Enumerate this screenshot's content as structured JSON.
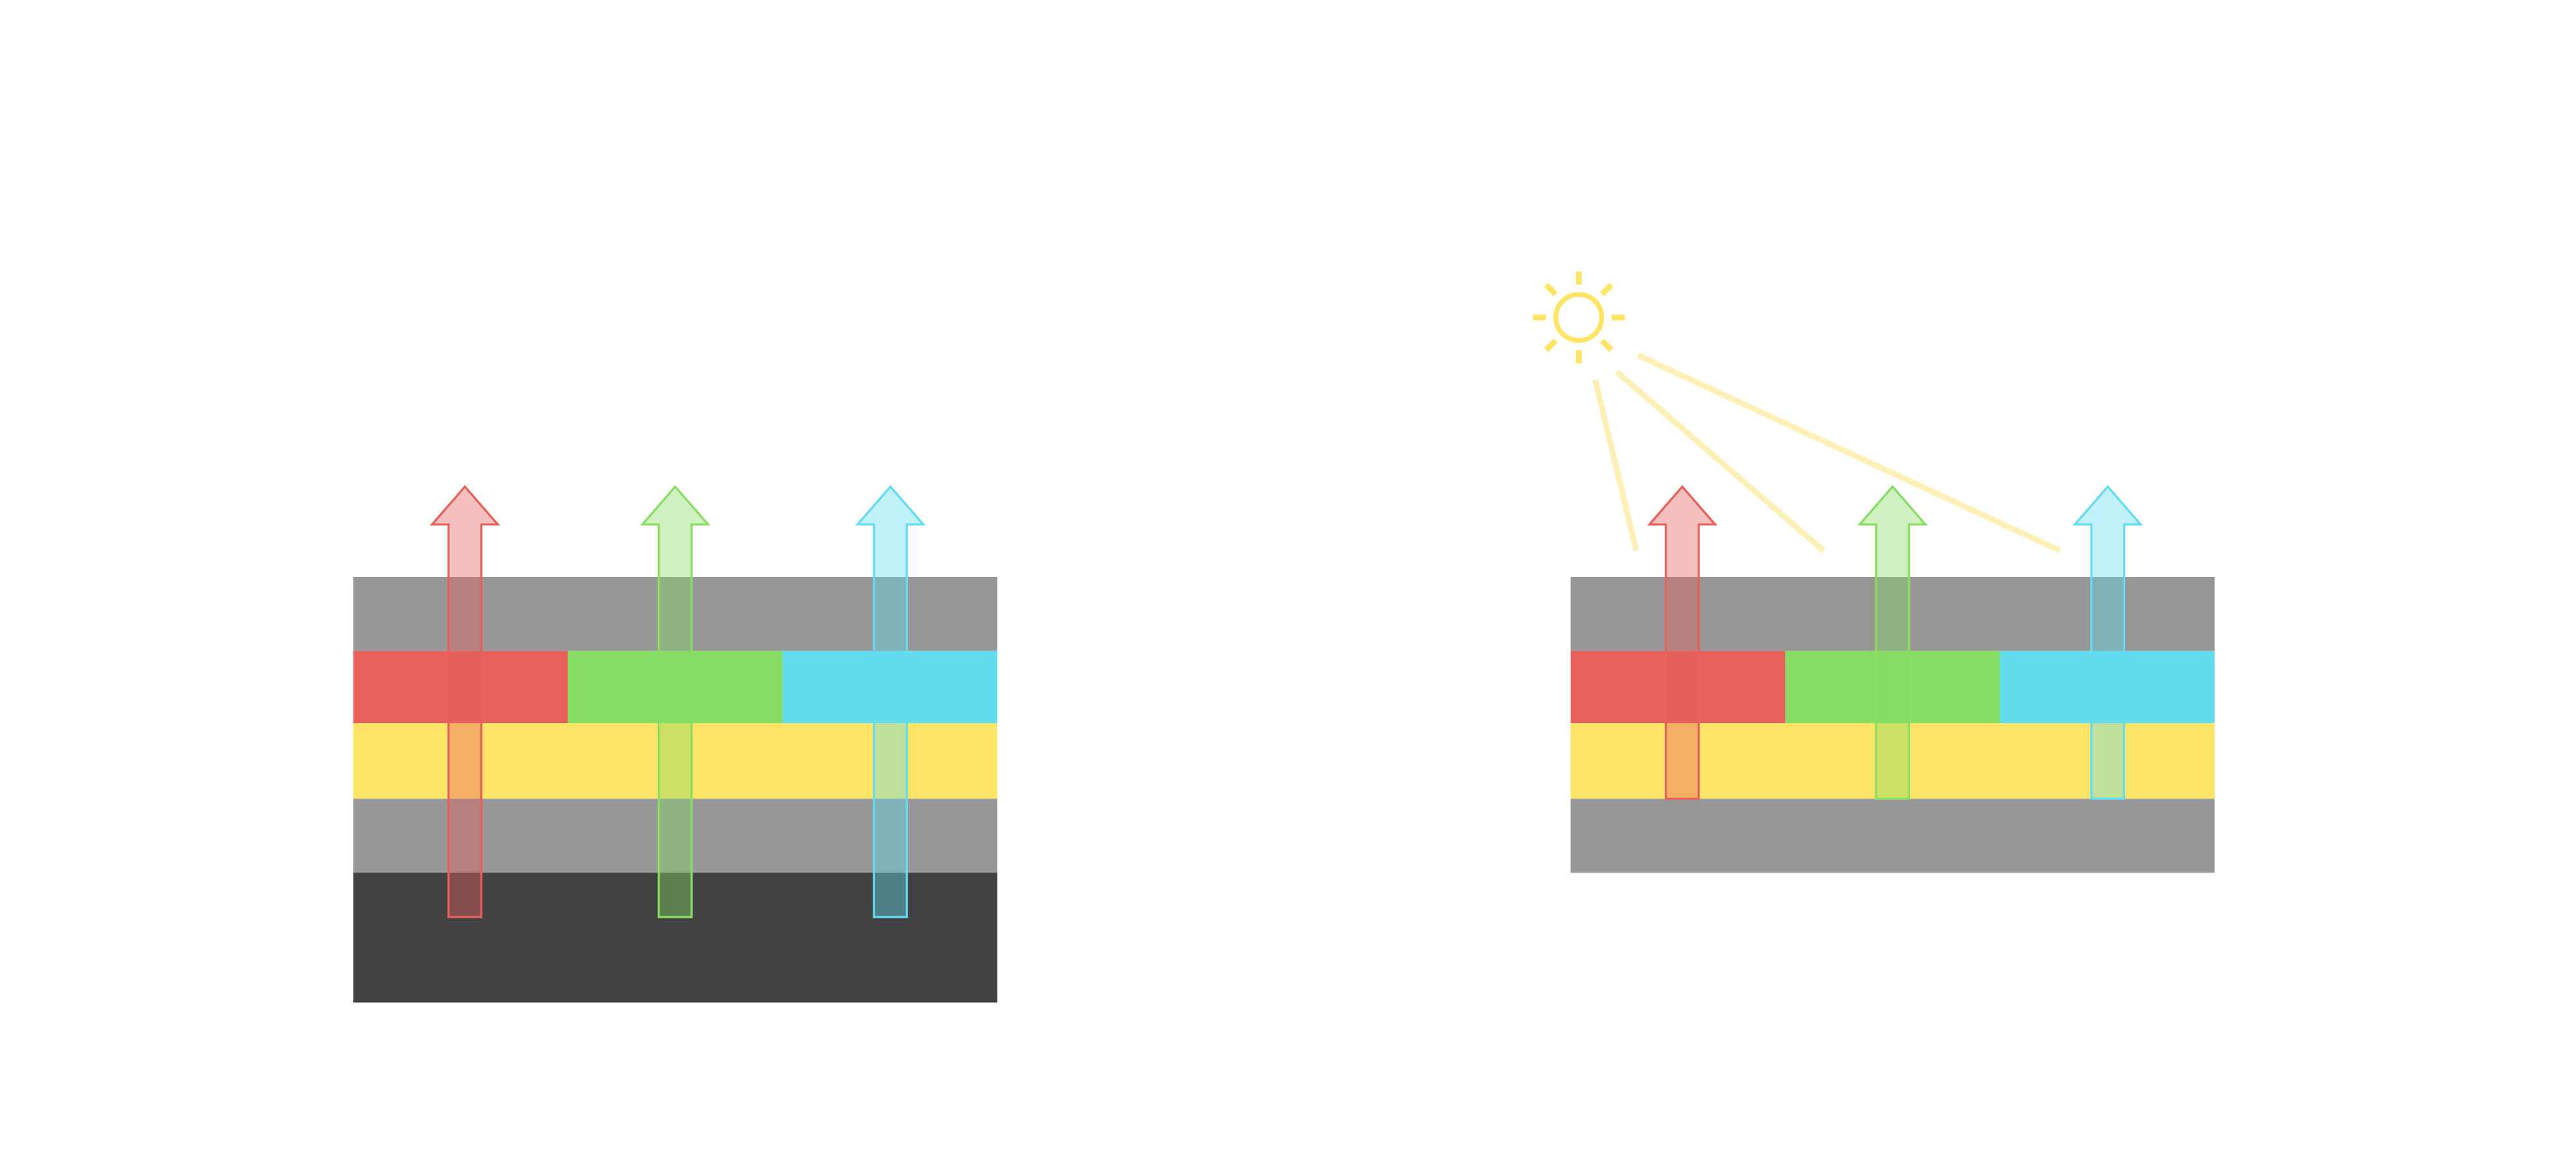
{
  "colors": {
    "background": "#ffffff",
    "gray_layer": "#979797",
    "dark_layer": "#424242",
    "yellow_layer": "#ffe566",
    "red": "#e6605c",
    "green": "#88dd64",
    "cyan": "#62dcee",
    "sun": "#ffe566",
    "sun_beam": "#fdf0b6"
  },
  "left_panel": {
    "layers": [
      "gray",
      "red-green-cyan",
      "yellow",
      "gray",
      "dark"
    ],
    "arrows": [
      "red",
      "green",
      "cyan"
    ],
    "light_source": "none"
  },
  "right_panel": {
    "layers": [
      "gray",
      "red-green-cyan",
      "yellow",
      "gray"
    ],
    "arrows": [
      "red",
      "green",
      "cyan"
    ],
    "light_source": "sun-icon",
    "beam_count": 3
  }
}
